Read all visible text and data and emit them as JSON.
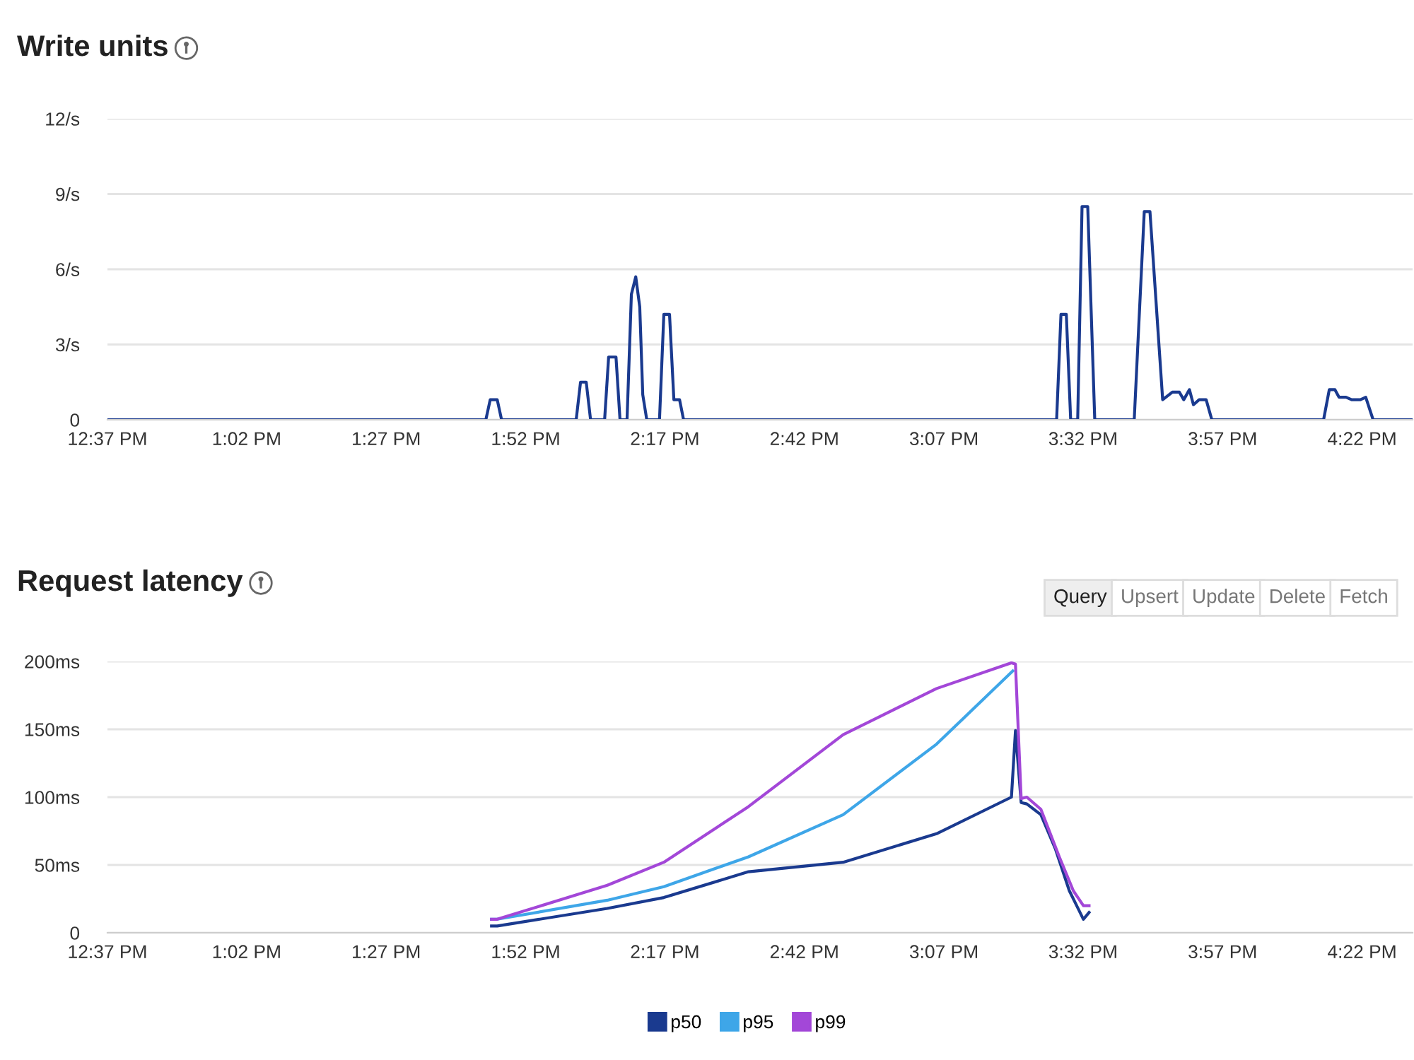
{
  "chart_data": [
    {
      "type": "line",
      "title": "Write units",
      "xlim": [
        12.617,
        16.518
      ],
      "xticks": [
        {
          "value": 12.617,
          "label": "12:37 PM"
        },
        {
          "value": 13.033,
          "label": "1:02 PM"
        },
        {
          "value": 13.45,
          "label": "1:27 PM"
        },
        {
          "value": 13.867,
          "label": "1:52 PM"
        },
        {
          "value": 14.283,
          "label": "2:17 PM"
        },
        {
          "value": 14.7,
          "label": "2:42 PM"
        },
        {
          "value": 15.117,
          "label": "3:07 PM"
        },
        {
          "value": 15.533,
          "label": "3:32 PM"
        },
        {
          "value": 15.95,
          "label": "3:57 PM"
        },
        {
          "value": 16.367,
          "label": "4:22 PM"
        }
      ],
      "ylim": [
        0,
        12
      ],
      "yticks": [
        0,
        {
          "value": 3,
          "label": "3/s"
        },
        {
          "value": 6,
          "label": "6/s"
        },
        {
          "value": 9,
          "label": "9/s"
        },
        {
          "value": 12,
          "label": "12/s"
        }
      ],
      "grid": "y",
      "series": [
        {
          "color": "#1a3a8f",
          "x": [
            12.617,
            13.748,
            13.761,
            13.782,
            13.795,
            14.018,
            14.031,
            14.048,
            14.061,
            14.103,
            14.115,
            14.137,
            14.149,
            14.17,
            14.183,
            14.196,
            14.208,
            14.217,
            14.229,
            14.267,
            14.28,
            14.297,
            14.31,
            14.327,
            14.339,
            15.454,
            15.467,
            15.483,
            15.496,
            15.517,
            15.53,
            15.547,
            15.568,
            15.686,
            15.716,
            15.733,
            15.771,
            15.8,
            15.821,
            15.834,
            15.851,
            15.863,
            15.88,
            15.901,
            15.918,
            16.252,
            16.269,
            16.286,
            16.298,
            16.319,
            16.336,
            16.362,
            16.378,
            16.4,
            16.518
          ],
          "values": [
            0,
            0,
            0.8,
            0.8,
            0,
            0,
            1.5,
            1.5,
            0,
            0,
            2.5,
            2.5,
            0,
            0,
            5.0,
            5.7,
            4.5,
            1.0,
            0,
            0,
            4.2,
            4.2,
            0.8,
            0.8,
            0,
            0,
            4.2,
            4.2,
            0,
            0,
            8.5,
            8.5,
            0,
            0,
            8.3,
            8.3,
            0.8,
            1.1,
            1.1,
            0.8,
            1.2,
            0.6,
            0.8,
            0.8,
            0,
            0,
            1.2,
            1.2,
            0.9,
            0.9,
            0.8,
            0.8,
            0.9,
            0,
            0
          ]
        }
      ]
    },
    {
      "type": "line",
      "title": "Request latency",
      "xlim": [
        12.617,
        16.518
      ],
      "xticks": [
        {
          "value": 12.617,
          "label": "12:37 PM"
        },
        {
          "value": 13.033,
          "label": "1:02 PM"
        },
        {
          "value": 13.45,
          "label": "1:27 PM"
        },
        {
          "value": 13.867,
          "label": "1:52 PM"
        },
        {
          "value": 14.283,
          "label": "2:17 PM"
        },
        {
          "value": 14.7,
          "label": "2:42 PM"
        },
        {
          "value": 15.117,
          "label": "3:07 PM"
        },
        {
          "value": 15.533,
          "label": "3:32 PM"
        },
        {
          "value": 15.95,
          "label": "3:57 PM"
        },
        {
          "value": 16.367,
          "label": "4:22 PM"
        }
      ],
      "ylim": [
        0,
        200
      ],
      "yticks": [
        0,
        {
          "value": 50,
          "label": "50ms"
        },
        {
          "value": 100,
          "label": "100ms"
        },
        {
          "value": 150,
          "label": "150ms"
        },
        {
          "value": 200,
          "label": "200ms"
        }
      ],
      "grid": "y",
      "legend": "bottom",
      "annotations": [
        "Query",
        "Upsert",
        "Update",
        "Delete",
        "Fetch"
      ],
      "series": [
        {
          "name": "p50",
          "color": "#1a3a8f",
          "x": [
            13.765,
            13.782,
            14.111,
            14.28,
            14.533,
            14.816,
            15.095,
            15.319,
            15.331,
            15.348,
            15.365,
            15.407,
            15.45,
            15.492,
            15.534,
            15.551
          ],
          "values": [
            5,
            5,
            18,
            26,
            45,
            52,
            73,
            100,
            149,
            96,
            95,
            87,
            62,
            31,
            10,
            15
          ]
        },
        {
          "name": "p95",
          "color": "#3ea6e8",
          "x": [
            13.765,
            13.782,
            14.111,
            14.28,
            14.533,
            14.816,
            15.095,
            15.323
          ],
          "values": [
            10,
            10,
            24,
            34,
            56,
            87,
            139,
            193
          ]
        },
        {
          "name": "p99",
          "color": "#a347d8",
          "x": [
            13.765,
            13.782,
            14.111,
            14.28,
            14.533,
            14.816,
            15.095,
            15.319,
            15.331,
            15.348,
            15.365,
            15.407,
            15.462,
            15.504,
            15.534,
            15.551
          ],
          "values": [
            10,
            10,
            35,
            52,
            93,
            146,
            180,
            199,
            198,
            99,
            100,
            91,
            56,
            31,
            20,
            20
          ]
        }
      ]
    }
  ]
}
